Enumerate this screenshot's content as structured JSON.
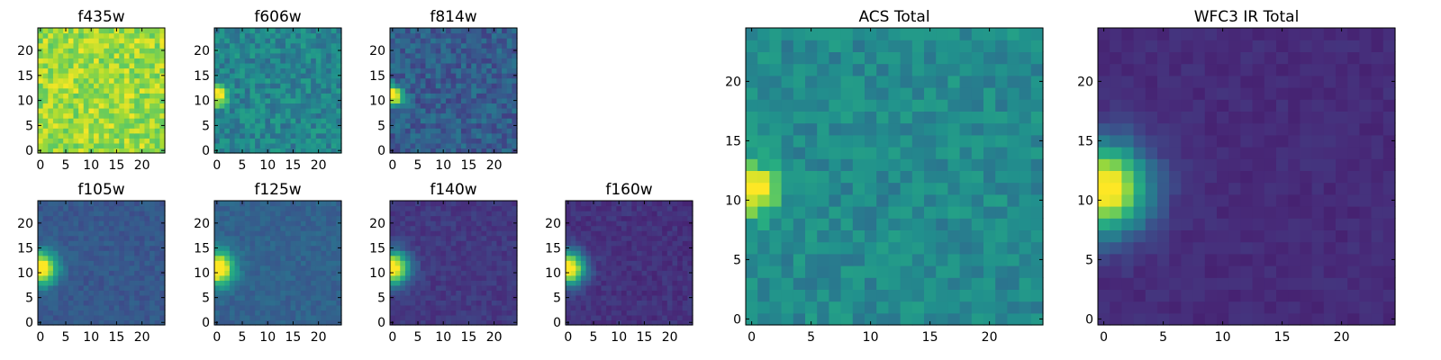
{
  "chart_data": [
    {
      "type": "heatmap",
      "title": "f435w",
      "xlim": [
        0,
        24
      ],
      "ylim": [
        0,
        24
      ],
      "xticks": [
        "0",
        "5",
        "10",
        "15",
        "20"
      ],
      "yticks": [
        "0",
        "5",
        "10",
        "15",
        "20"
      ],
      "colormap": "viridis",
      "source": {
        "base": 0.86,
        "amp": 0.0,
        "noise": 0.26,
        "sigma": 3.0
      }
    },
    {
      "type": "heatmap",
      "title": "f606w",
      "xlim": [
        0,
        24
      ],
      "ylim": [
        0,
        24
      ],
      "xticks": [
        "0",
        "5",
        "10",
        "15",
        "20"
      ],
      "yticks": [
        "0",
        "5",
        "10",
        "15",
        "20"
      ],
      "colormap": "viridis",
      "source": {
        "base": 0.46,
        "amp": 0.62,
        "noise": 0.24,
        "sigma": 1.4
      }
    },
    {
      "type": "heatmap",
      "title": "f814w",
      "xlim": [
        0,
        24
      ],
      "ylim": [
        0,
        24
      ],
      "xticks": [
        "0",
        "5",
        "10",
        "15",
        "20"
      ],
      "yticks": [
        "0",
        "5",
        "10",
        "15",
        "20"
      ],
      "colormap": "viridis",
      "source": {
        "base": 0.3,
        "amp": 0.8,
        "noise": 0.22,
        "sigma": 1.4
      }
    },
    {
      "type": "heatmap",
      "title": "f105w",
      "xlim": [
        0,
        24
      ],
      "ylim": [
        0,
        24
      ],
      "xticks": [
        "0",
        "5",
        "10",
        "15",
        "20"
      ],
      "yticks": [
        "0",
        "5",
        "10",
        "15",
        "20"
      ],
      "colormap": "viridis",
      "source": {
        "base": 0.28,
        "amp": 0.85,
        "noise": 0.1,
        "sigma": 2.3
      }
    },
    {
      "type": "heatmap",
      "title": "f125w",
      "xlim": [
        0,
        24
      ],
      "ylim": [
        0,
        24
      ],
      "xticks": [
        "0",
        "5",
        "10",
        "15",
        "20"
      ],
      "yticks": [
        "0",
        "5",
        "10",
        "15",
        "20"
      ],
      "colormap": "viridis",
      "source": {
        "base": 0.32,
        "amp": 0.85,
        "noise": 0.1,
        "sigma": 2.3
      }
    },
    {
      "type": "heatmap",
      "title": "f140w",
      "xlim": [
        0,
        24
      ],
      "ylim": [
        0,
        24
      ],
      "xticks": [
        "0",
        "5",
        "10",
        "15",
        "20"
      ],
      "yticks": [
        "0",
        "5",
        "10",
        "15",
        "20"
      ],
      "colormap": "viridis",
      "source": {
        "base": 0.17,
        "amp": 0.95,
        "noise": 0.09,
        "sigma": 2.3
      }
    },
    {
      "type": "heatmap",
      "title": "f160w",
      "xlim": [
        0,
        24
      ],
      "ylim": [
        0,
        24
      ],
      "xticks": [
        "0",
        "5",
        "10",
        "15",
        "20"
      ],
      "yticks": [
        "0",
        "5",
        "10",
        "15",
        "20"
      ],
      "colormap": "viridis",
      "source": {
        "base": 0.15,
        "amp": 0.95,
        "noise": 0.09,
        "sigma": 2.3
      }
    },
    {
      "type": "heatmap",
      "title": "ACS Total",
      "xlim": [
        0,
        24
      ],
      "ylim": [
        0,
        24
      ],
      "xticks": [
        "0",
        "5",
        "10",
        "15",
        "20"
      ],
      "yticks": [
        "0",
        "5",
        "10",
        "15",
        "20"
      ],
      "colormap": "viridis",
      "source": {
        "base": 0.48,
        "amp": 0.62,
        "noise": 0.18,
        "sigma": 1.5
      }
    },
    {
      "type": "heatmap",
      "title": "WFC3 IR Total",
      "xlim": [
        0,
        24
      ],
      "ylim": [
        0,
        24
      ],
      "xticks": [
        "0",
        "5",
        "10",
        "15",
        "20"
      ],
      "yticks": [
        "0",
        "5",
        "10",
        "15",
        "20"
      ],
      "colormap": "viridis",
      "source": {
        "base": 0.13,
        "amp": 0.95,
        "noise": 0.06,
        "sigma": 2.6
      }
    }
  ]
}
